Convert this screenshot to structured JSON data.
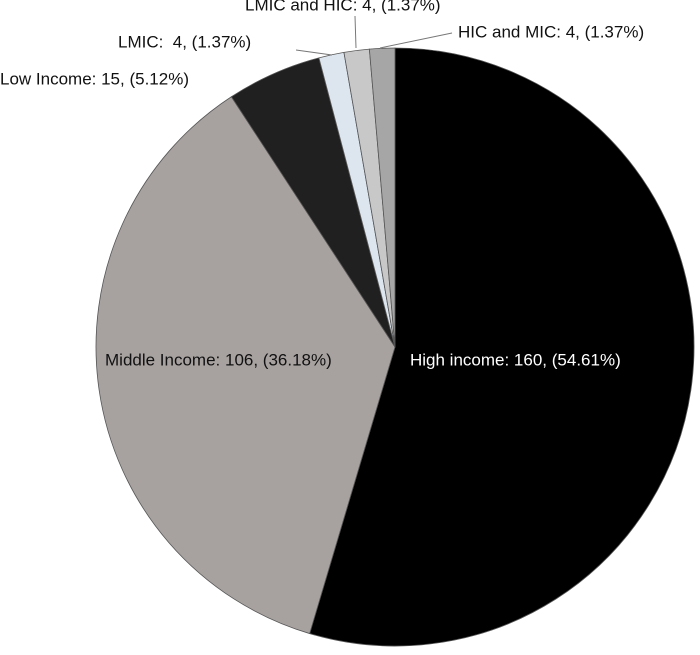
{
  "chart_data": {
    "type": "pie",
    "categories": [
      "High income: 160, (54.61%)",
      "Middle Income: 106, (36.18%)",
      "Low Income: 15, (5.12%)",
      "LMIC:  4, (1.37%)",
      "LMIC and HIC: 4, (1.37%)",
      "HIC and MIC: 4, (1.37%)"
    ],
    "values": [
      160,
      106,
      15,
      4,
      4,
      4
    ],
    "colors": [
      "#000000",
      "#a7a2a0",
      "#202020",
      "#dde6ef",
      "#c8c8c8",
      "#a6a6a6"
    ]
  }
}
